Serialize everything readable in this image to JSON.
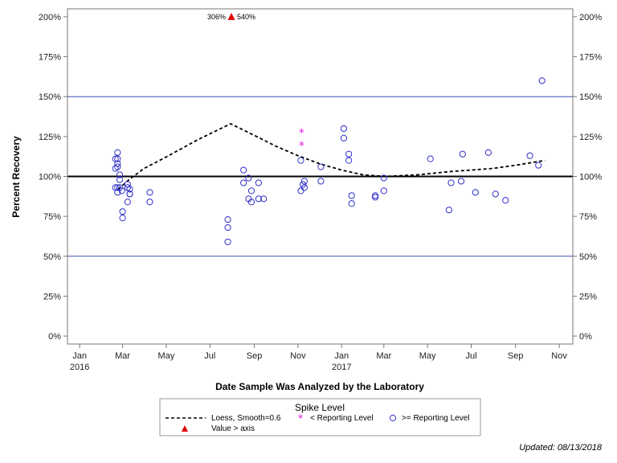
{
  "chart_data": {
    "type": "scatter",
    "title": "",
    "xlabel": "Date Sample Was Analyzed by the Laboratory",
    "ylabel": "Percent Recovery",
    "xlim": [
      "2015-12-15",
      "2017-11-20"
    ],
    "ylim": [
      -5,
      205
    ],
    "y_ticks": [
      0,
      25,
      50,
      75,
      100,
      125,
      150,
      175,
      200
    ],
    "y_tick_suffix": "%",
    "x_ticks": [
      {
        "date": "2016-01-01",
        "label": "Jan",
        "year": "2016"
      },
      {
        "date": "2016-03-01",
        "label": "Mar",
        "year": ""
      },
      {
        "date": "2016-05-01",
        "label": "May",
        "year": ""
      },
      {
        "date": "2016-07-01",
        "label": "Jul",
        "year": ""
      },
      {
        "date": "2016-09-01",
        "label": "Sep",
        "year": ""
      },
      {
        "date": "2016-11-01",
        "label": "Nov",
        "year": ""
      },
      {
        "date": "2017-01-01",
        "label": "Jan",
        "year": "2017"
      },
      {
        "date": "2017-03-01",
        "label": "Mar",
        "year": ""
      },
      {
        "date": "2017-05-01",
        "label": "May",
        "year": ""
      },
      {
        "date": "2017-07-01",
        "label": "Jul",
        "year": ""
      },
      {
        "date": "2017-09-01",
        "label": "Sep",
        "year": ""
      },
      {
        "date": "2017-11-01",
        "label": "Nov",
        "year": ""
      }
    ],
    "reference_lines": [
      {
        "y": 50,
        "color": "#3f51b5",
        "width": 1
      },
      {
        "y": 100,
        "color": "#000000",
        "width": 2
      },
      {
        "y": 150,
        "color": "#3f51b5",
        "width": 1
      }
    ],
    "series": [
      {
        "name": "Loess, Smooth=0.6",
        "kind": "line-dashed",
        "color": "#000000",
        "points": [
          {
            "x": "2016-02-24",
            "y": 92
          },
          {
            "x": "2016-03-10",
            "y": 98
          },
          {
            "x": "2016-03-31",
            "y": 105
          },
          {
            "x": "2016-04-30",
            "y": 112
          },
          {
            "x": "2016-06-14",
            "y": 123
          },
          {
            "x": "2016-07-30",
            "y": 133
          },
          {
            "x": "2016-08-31",
            "y": 126
          },
          {
            "x": "2016-10-01",
            "y": 119
          },
          {
            "x": "2016-11-01",
            "y": 113
          },
          {
            "x": "2016-12-01",
            "y": 108
          },
          {
            "x": "2017-01-01",
            "y": 104
          },
          {
            "x": "2017-01-31",
            "y": 101
          },
          {
            "x": "2017-03-02",
            "y": 100
          },
          {
            "x": "2017-04-17",
            "y": 101
          },
          {
            "x": "2017-06-01",
            "y": 103
          },
          {
            "x": "2017-07-31",
            "y": 105
          },
          {
            "x": "2017-09-01",
            "y": 107
          },
          {
            "x": "2017-10-12",
            "y": 110
          }
        ]
      },
      {
        "name": "< Reporting Level",
        "kind": "star",
        "color": "#e020e0",
        "points": [
          {
            "x": "2016-11-06",
            "y": 128
          },
          {
            "x": "2016-11-06",
            "y": 120
          }
        ]
      },
      {
        "name": ">= Reporting Level",
        "kind": "circle",
        "color": "#3030c8",
        "points": [
          {
            "x": "2016-02-20",
            "y": 111
          },
          {
            "x": "2016-02-20",
            "y": 105
          },
          {
            "x": "2016-02-20",
            "y": 93
          },
          {
            "x": "2016-02-23",
            "y": 115
          },
          {
            "x": "2016-02-23",
            "y": 111
          },
          {
            "x": "2016-02-23",
            "y": 108
          },
          {
            "x": "2016-02-23",
            "y": 106
          },
          {
            "x": "2016-02-23",
            "y": 93
          },
          {
            "x": "2016-02-23",
            "y": 90
          },
          {
            "x": "2016-02-26",
            "y": 101
          },
          {
            "x": "2016-02-26",
            "y": 98
          },
          {
            "x": "2016-02-26",
            "y": 93
          },
          {
            "x": "2016-02-29",
            "y": 91
          },
          {
            "x": "2016-03-01",
            "y": 78
          },
          {
            "x": "2016-03-01",
            "y": 74
          },
          {
            "x": "2016-03-08",
            "y": 95
          },
          {
            "x": "2016-03-08",
            "y": 93
          },
          {
            "x": "2016-03-08",
            "y": 84
          },
          {
            "x": "2016-03-11",
            "y": 92
          },
          {
            "x": "2016-03-11",
            "y": 89
          },
          {
            "x": "2016-03-11",
            "y": 89
          },
          {
            "x": "2016-04-08",
            "y": 90
          },
          {
            "x": "2016-04-08",
            "y": 84
          },
          {
            "x": "2016-07-26",
            "y": 73
          },
          {
            "x": "2016-07-26",
            "y": 68
          },
          {
            "x": "2016-07-26",
            "y": 59
          },
          {
            "x": "2016-08-17",
            "y": 104
          },
          {
            "x": "2016-08-17",
            "y": 96
          },
          {
            "x": "2016-08-24",
            "y": 99
          },
          {
            "x": "2016-08-24",
            "y": 86
          },
          {
            "x": "2016-08-28",
            "y": 91
          },
          {
            "x": "2016-08-28",
            "y": 84
          },
          {
            "x": "2016-09-07",
            "y": 96
          },
          {
            "x": "2016-09-07",
            "y": 86
          },
          {
            "x": "2016-09-14",
            "y": 86
          },
          {
            "x": "2016-11-05",
            "y": 110
          },
          {
            "x": "2016-11-05",
            "y": 91
          },
          {
            "x": "2016-11-08",
            "y": 95
          },
          {
            "x": "2016-11-10",
            "y": 97
          },
          {
            "x": "2016-11-10",
            "y": 93
          },
          {
            "x": "2016-12-03",
            "y": 106
          },
          {
            "x": "2016-12-03",
            "y": 97
          },
          {
            "x": "2017-01-04",
            "y": 130
          },
          {
            "x": "2017-01-04",
            "y": 124
          },
          {
            "x": "2017-01-11",
            "y": 114
          },
          {
            "x": "2017-01-11",
            "y": 110
          },
          {
            "x": "2017-01-15",
            "y": 88
          },
          {
            "x": "2017-01-15",
            "y": 83
          },
          {
            "x": "2017-02-17",
            "y": 88
          },
          {
            "x": "2017-02-17",
            "y": 87
          },
          {
            "x": "2017-03-01",
            "y": 99
          },
          {
            "x": "2017-03-01",
            "y": 91
          },
          {
            "x": "2017-05-05",
            "y": 111
          },
          {
            "x": "2017-05-31",
            "y": 79
          },
          {
            "x": "2017-06-03",
            "y": 96
          },
          {
            "x": "2017-06-17",
            "y": 97
          },
          {
            "x": "2017-06-19",
            "y": 114
          },
          {
            "x": "2017-07-07",
            "y": 90
          },
          {
            "x": "2017-07-25",
            "y": 115
          },
          {
            "x": "2017-08-04",
            "y": 89
          },
          {
            "x": "2017-08-18",
            "y": 85
          },
          {
            "x": "2017-09-21",
            "y": 113
          },
          {
            "x": "2017-10-03",
            "y": 107
          },
          {
            "x": "2017-10-08",
            "y": 160
          }
        ]
      },
      {
        "name": "Value > axis",
        "kind": "triangle",
        "color": "#e00000",
        "points": [
          {
            "x": "2016-07-31",
            "y": 200,
            "labels": [
              "306%",
              "540%"
            ]
          }
        ]
      }
    ],
    "legend": {
      "title": "Spike Level",
      "position": "bottom",
      "entries": [
        "Loess, Smooth=0.6",
        "< Reporting Level",
        ">= Reporting Level",
        "Value > axis"
      ]
    },
    "grid": false
  },
  "footnote": "Updated: 08/13/2018"
}
